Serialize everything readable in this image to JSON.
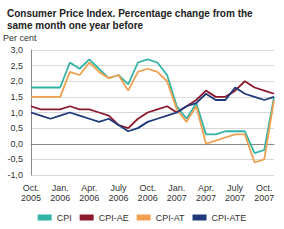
{
  "chart_data": {
    "type": "line",
    "title": "Consumer Price Index. Percentage change from the same month one year before",
    "y_label": "Per cent",
    "categories": [
      "Oct. 2005",
      null,
      null,
      "Jan. 2006",
      null,
      null,
      "Apr. 2006",
      null,
      null,
      "July 2006",
      null,
      null,
      "Oct. 2006",
      null,
      null,
      "Jan. 2007",
      null,
      null,
      "Apr. 2007",
      null,
      null,
      "July 2007",
      null,
      null,
      "Oct. 2007",
      null
    ],
    "series": [
      {
        "name": "CPI",
        "color": "#33b3a6",
        "values": [
          1.8,
          1.8,
          1.8,
          1.8,
          2.6,
          2.4,
          2.7,
          2.4,
          2.1,
          2.2,
          1.9,
          2.6,
          2.7,
          2.6,
          2.2,
          1.2,
          0.8,
          1.3,
          0.3,
          0.3,
          0.4,
          0.4,
          0.4,
          -0.3,
          -0.2,
          1.5
        ]
      },
      {
        "name": "CPI-AE",
        "color": "#8b1a2b",
        "values": [
          1.2,
          1.1,
          1.1,
          1.1,
          1.2,
          1.1,
          1.1,
          1.0,
          0.9,
          0.6,
          0.5,
          0.8,
          1.0,
          1.1,
          1.2,
          1.0,
          1.2,
          1.4,
          1.7,
          1.5,
          1.5,
          1.7,
          2.0,
          1.8,
          1.7,
          1.6
        ]
      },
      {
        "name": "CPI-AT",
        "color": "#f0a050",
        "values": [
          1.5,
          1.5,
          1.5,
          1.5,
          2.3,
          2.2,
          2.6,
          2.3,
          2.1,
          2.2,
          1.7,
          2.3,
          2.4,
          2.3,
          2.0,
          1.1,
          0.7,
          1.2,
          0.0,
          0.1,
          0.2,
          0.3,
          0.3,
          -0.6,
          -0.5,
          1.4
        ]
      },
      {
        "name": "CPI-ATE",
        "color": "#1f3a7a",
        "values": [
          1.0,
          0.9,
          0.8,
          0.9,
          1.0,
          0.9,
          0.8,
          0.7,
          0.8,
          0.6,
          0.4,
          0.5,
          0.7,
          0.8,
          0.9,
          1.0,
          1.2,
          1.3,
          1.6,
          1.4,
          1.4,
          1.8,
          1.6,
          1.5,
          1.4,
          1.5
        ]
      }
    ],
    "ylim": [
      -1,
      3
    ],
    "yticks": [
      {
        "value": -1,
        "label": "-1,0"
      },
      {
        "value": -0.5,
        "label": "-0,5"
      },
      {
        "value": 0,
        "label": "0,0"
      },
      {
        "value": 0.5,
        "label": "0,5"
      },
      {
        "value": 1,
        "label": "1,0"
      },
      {
        "value": 1.5,
        "label": "1,5"
      },
      {
        "value": 2,
        "label": "2,0"
      },
      {
        "value": 2.5,
        "label": "2,5"
      },
      {
        "value": 3,
        "label": "3,0"
      }
    ],
    "grid": true,
    "legend": "bottom"
  }
}
